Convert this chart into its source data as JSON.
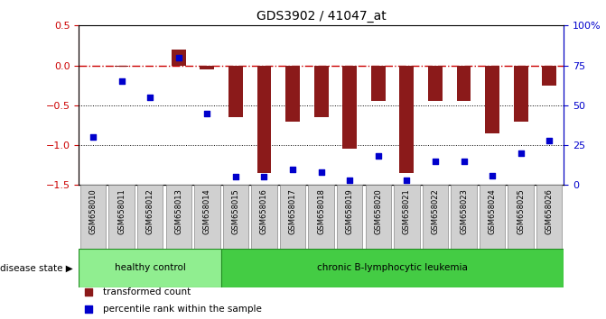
{
  "title": "GDS3902 / 41047_at",
  "samples": [
    "GSM658010",
    "GSM658011",
    "GSM658012",
    "GSM658013",
    "GSM658014",
    "GSM658015",
    "GSM658016",
    "GSM658017",
    "GSM658018",
    "GSM658019",
    "GSM658020",
    "GSM658021",
    "GSM658022",
    "GSM658023",
    "GSM658024",
    "GSM658025",
    "GSM658026"
  ],
  "red_bars": [
    0.0,
    -0.02,
    0.0,
    0.2,
    -0.05,
    -0.65,
    -1.35,
    -0.7,
    -0.65,
    -1.05,
    -0.45,
    -1.35,
    -0.45,
    -0.44,
    -0.85,
    -0.7,
    -0.25
  ],
  "blue_squares": [
    30,
    65,
    55,
    80,
    45,
    5,
    5,
    10,
    8,
    3,
    18,
    3,
    15,
    15,
    6,
    20,
    28
  ],
  "ylim_left": [
    -1.5,
    0.5
  ],
  "ylim_right": [
    0,
    100
  ],
  "yticks_left": [
    -1.5,
    -1.0,
    -0.5,
    0.0,
    0.5
  ],
  "yticks_right": [
    0,
    25,
    50,
    75,
    100
  ],
  "ytick_labels_right": [
    "0",
    "25",
    "50",
    "75",
    "100%"
  ],
  "healthy_count": 5,
  "bar_color": "#8B1A1A",
  "square_color": "#0000CC",
  "dashed_line_color": "#CC0000",
  "dotted_line_color": "#000000",
  "bg_color": "#FFFFFF",
  "plot_bg_color": "#FFFFFF",
  "healthy_label": "healthy control",
  "disease_label": "chronic B-lymphocytic leukemia",
  "healthy_color": "#90EE90",
  "disease_color": "#44CC44",
  "disease_state_label": "disease state",
  "legend_red": "transformed count",
  "legend_blue": "percentile rank within the sample",
  "tick_label_color_left": "#CC0000",
  "tick_label_color_right": "#0000CC"
}
